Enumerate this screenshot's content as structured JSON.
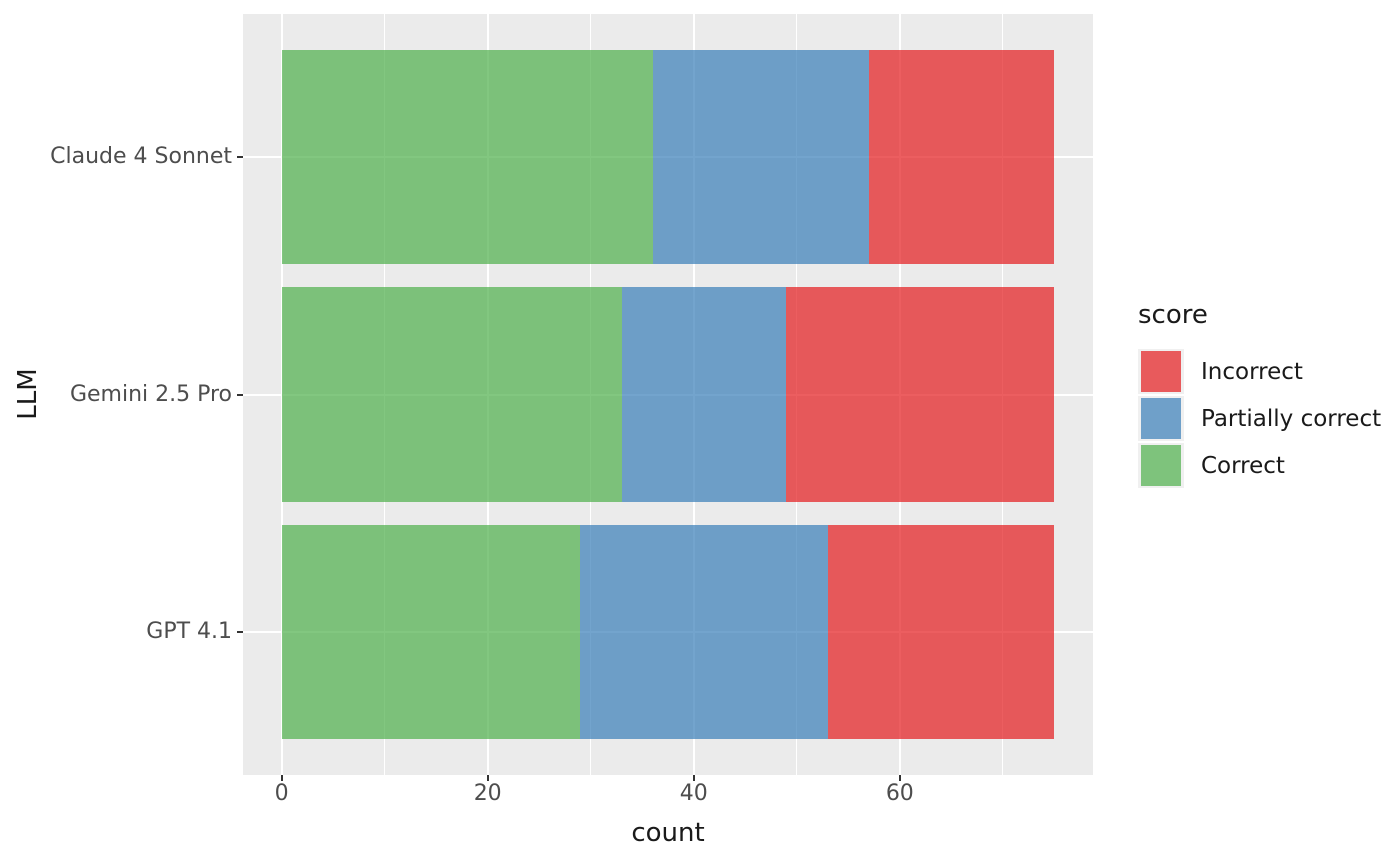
{
  "chart_data": {
    "type": "bar",
    "orientation": "horizontal",
    "stacked": true,
    "title": "",
    "xlabel": "count",
    "ylabel": "LLM",
    "categories": [
      "Claude 4 Sonnet",
      "Gemini 2.5 Pro",
      "GPT 4.1"
    ],
    "series": [
      {
        "name": "Correct",
        "color": "#4DAF4A",
        "alpha": 0.7,
        "values": [
          36,
          33,
          29
        ]
      },
      {
        "name": "Partially correct",
        "color": "#377EB8",
        "alpha": 0.7,
        "values": [
          21,
          16,
          24
        ]
      },
      {
        "name": "Incorrect",
        "color": "#E41A1C",
        "alpha": 0.7,
        "values": [
          18,
          26,
          22
        ]
      }
    ],
    "totals": [
      75,
      75,
      75
    ],
    "x_ticks": [
      0,
      20,
      40,
      60
    ],
    "x_minor_ticks": [
      10,
      30,
      50,
      70
    ],
    "xlim": [
      0,
      75
    ],
    "grid": true,
    "panel_background": "#EBEBEB",
    "gridline_color": "#FFFFFF",
    "legend": {
      "title": "score",
      "position": "right",
      "entries": [
        "Incorrect",
        "Partially correct",
        "Correct"
      ]
    }
  }
}
